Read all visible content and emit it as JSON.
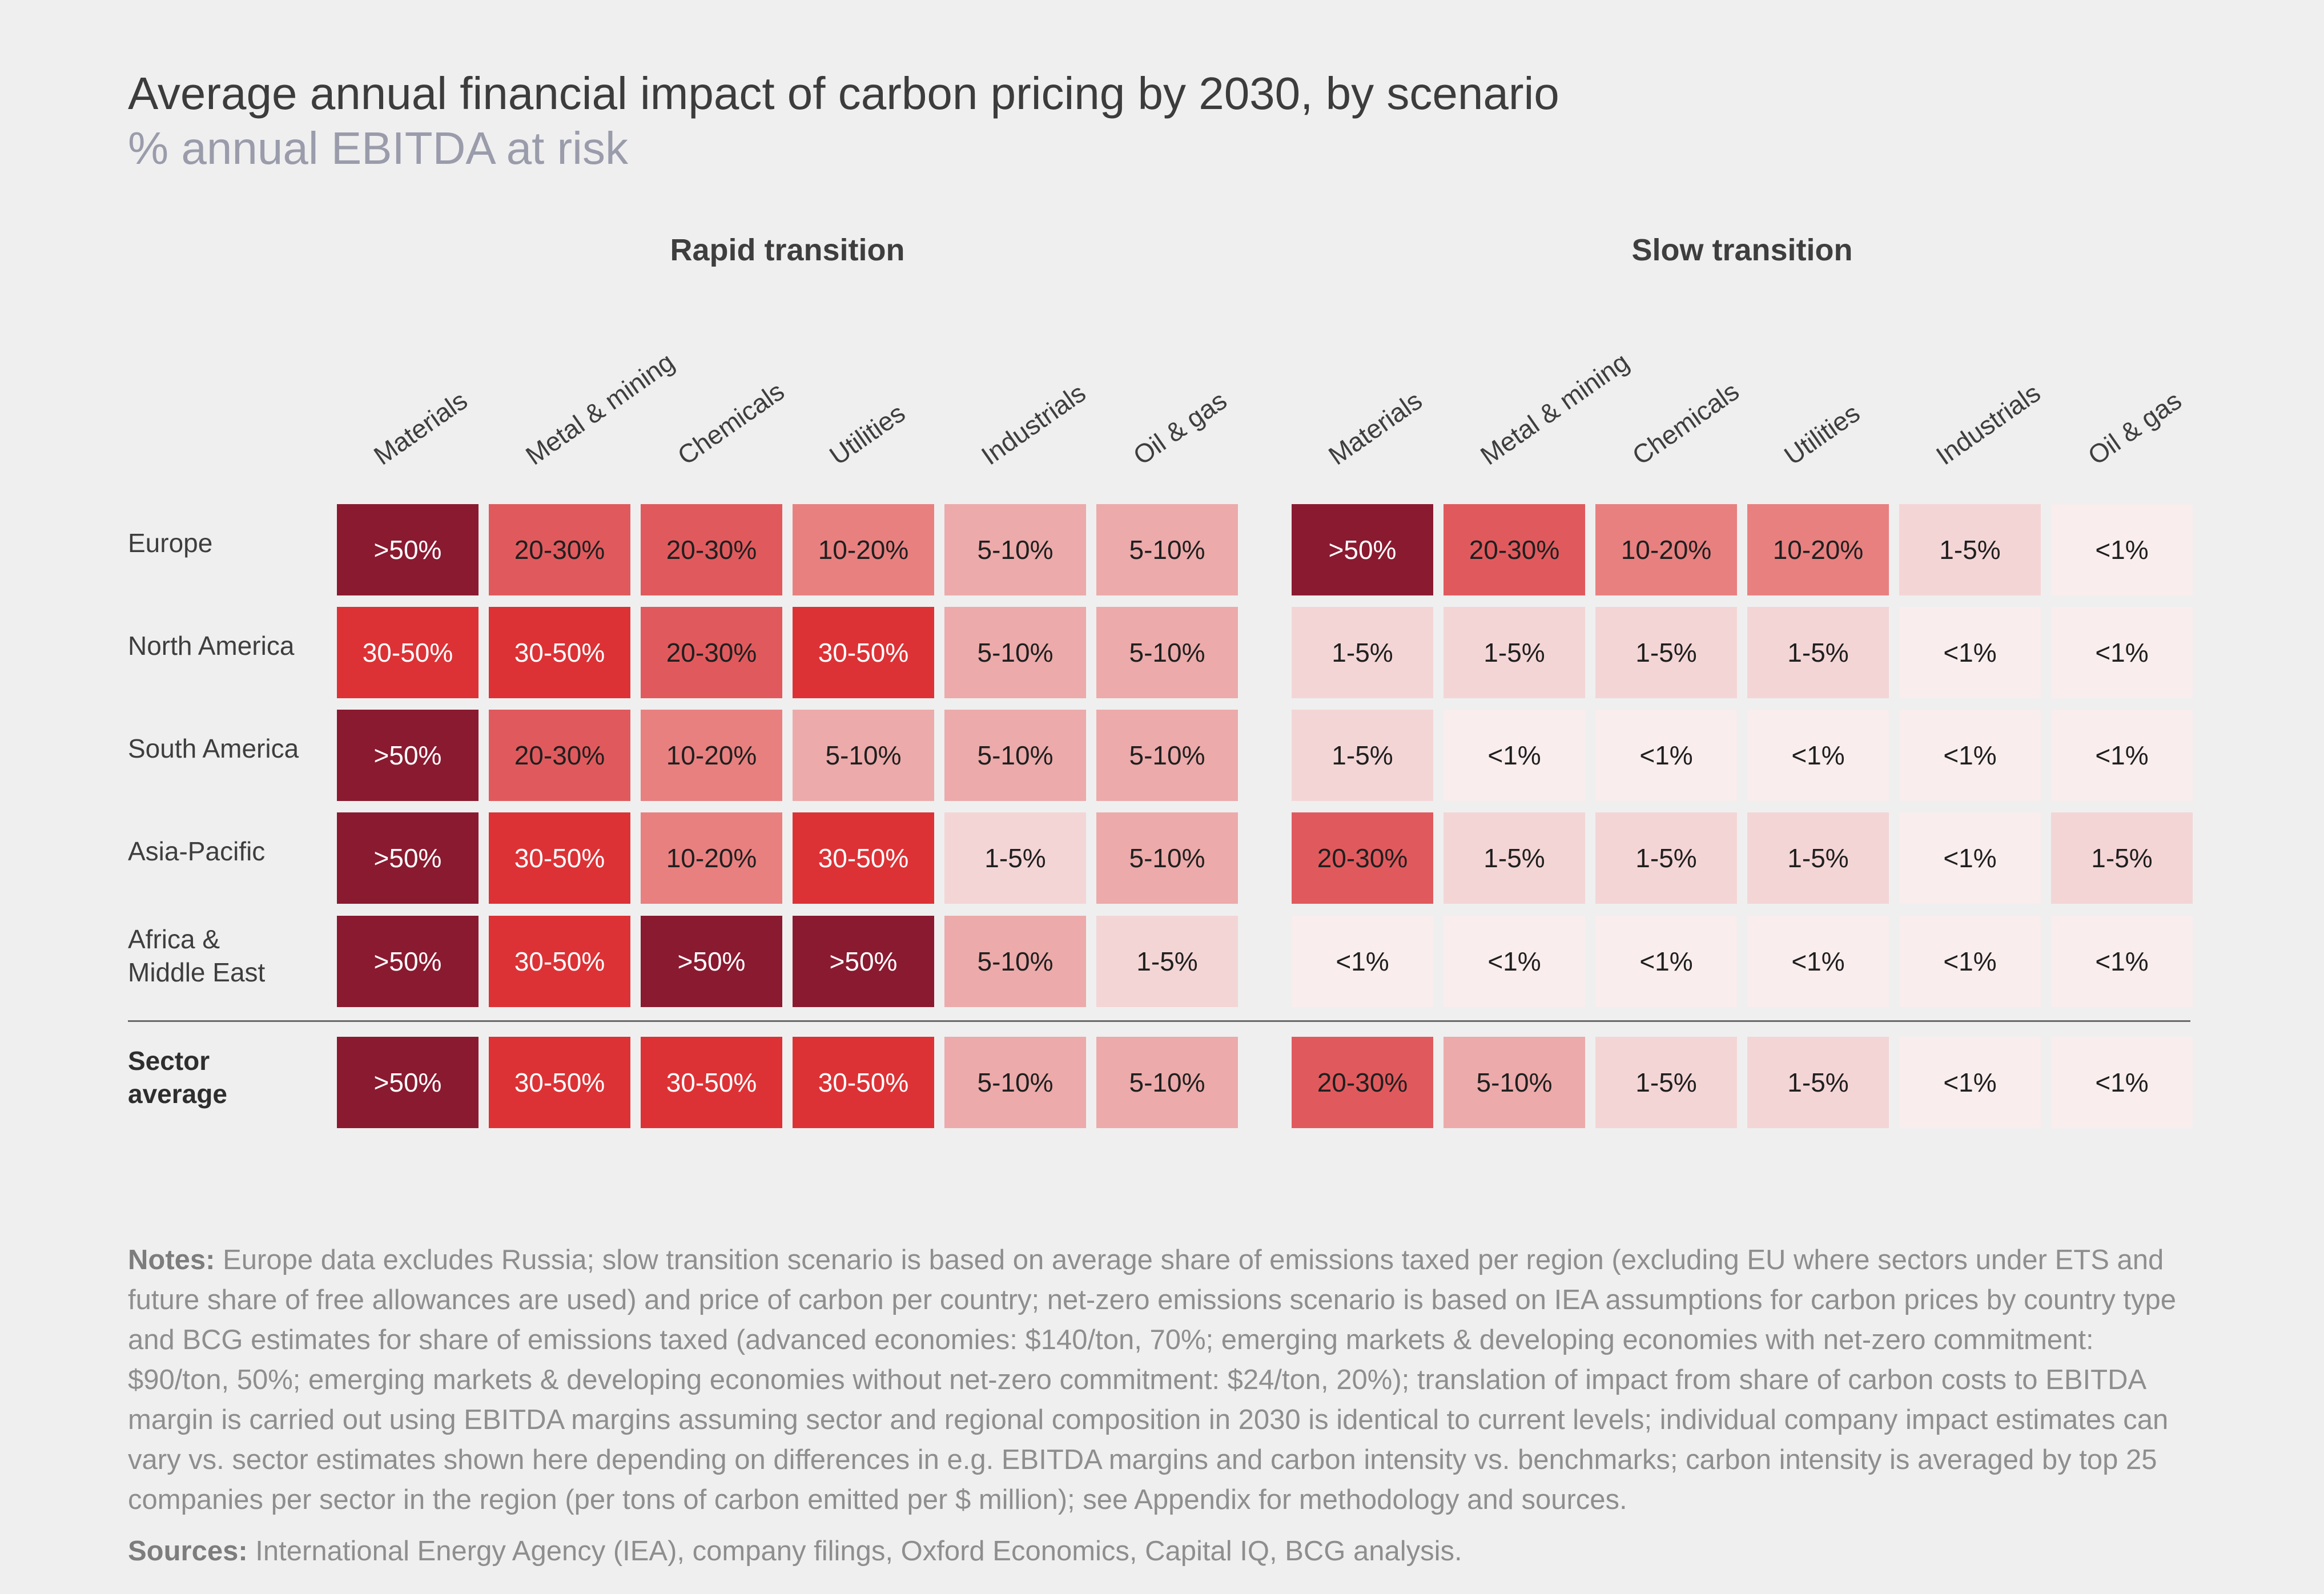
{
  "title": "Average annual financial impact of carbon pricing by 2030, by scenario",
  "subtitle": "% annual EBITDA at risk",
  "chart_data": {
    "type": "heatmap",
    "title": "Average annual financial impact of carbon pricing by 2030, by scenario",
    "subtitle": "% annual EBITDA at risk",
    "columns": [
      "Materials",
      "Metal & mining",
      "Chemicals",
      "Utilities",
      "Industrials",
      "Oil & gas"
    ],
    "rows": [
      "Europe",
      "North America",
      "South America",
      "Asia-Pacific",
      "Africa & Middle East",
      "Sector average"
    ],
    "row_label_lines": [
      [
        "Europe"
      ],
      [
        "North America"
      ],
      [
        "South America"
      ],
      [
        "Asia-Pacific"
      ],
      [
        "Africa &",
        "Middle East"
      ],
      [
        "Sector",
        "average"
      ]
    ],
    "scenarios": [
      {
        "name": "Rapid transition",
        "values": [
          [
            ">50%",
            "20-30%",
            "20-30%",
            "10-20%",
            "5-10%",
            "5-10%"
          ],
          [
            "30-50%",
            "30-50%",
            "20-30%",
            "30-50%",
            "5-10%",
            "5-10%"
          ],
          [
            ">50%",
            "20-30%",
            "10-20%",
            "5-10%",
            "5-10%",
            "5-10%"
          ],
          [
            ">50%",
            "30-50%",
            "10-20%",
            "30-50%",
            "1-5%",
            "5-10%"
          ],
          [
            ">50%",
            "30-50%",
            ">50%",
            ">50%",
            "5-10%",
            "1-5%"
          ],
          [
            ">50%",
            "30-50%",
            "30-50%",
            "30-50%",
            "5-10%",
            "5-10%"
          ]
        ]
      },
      {
        "name": "Slow transition",
        "values": [
          [
            ">50%",
            "20-30%",
            "10-20%",
            "10-20%",
            "1-5%",
            "<1%"
          ],
          [
            "1-5%",
            "1-5%",
            "1-5%",
            "1-5%",
            "<1%",
            "<1%"
          ],
          [
            "1-5%",
            "<1%",
            "<1%",
            "<1%",
            "<1%",
            "<1%"
          ],
          [
            "20-30%",
            "1-5%",
            "1-5%",
            "1-5%",
            "<1%",
            "1-5%"
          ],
          [
            "<1%",
            "<1%",
            "<1%",
            "<1%",
            "<1%",
            "<1%"
          ],
          [
            "20-30%",
            "5-10%",
            "1-5%",
            "1-5%",
            "<1%",
            "<1%"
          ]
        ]
      }
    ],
    "color_scale": {
      ">50%": {
        "fill": "#8a1a30",
        "text": "#ffffff"
      },
      "30-50%": {
        "fill": "#dc3236",
        "text": "#ffffff"
      },
      "20-30%": {
        "fill": "#e05a5d",
        "text": "#1f1f1f"
      },
      "10-20%": {
        "fill": "#e88080",
        "text": "#1f1f1f"
      },
      "5-10%": {
        "fill": "#ecaaaa",
        "text": "#1f1f1f"
      },
      "1-5%": {
        "fill": "#f4d5d6",
        "text": "#1f1f1f"
      },
      "<1%": {
        "fill": "#f9eded",
        "text": "#1f1f1f"
      }
    },
    "summary_row_separated": true
  },
  "notes": {
    "label": "Notes:",
    "text": " Europe data excludes Russia; slow transition scenario is based on average share of emissions taxed per region (excluding EU where sectors under ETS and future share of free allowances are used) and price of carbon per country; net-zero emissions scenario is based on IEA assumptions for carbon prices by country type and BCG estimates for share of emissions taxed (advanced economies: $140/ton, 70%; emerging markets & developing economies with net-zero commitment: $90/ton, 50%; emerging markets & developing economies without net-zero commitment: $24/ton, 20%); translation of impact from share of carbon costs to EBITDA margin is carried out using EBITDA margins assuming sector and regional composition in 2030 is identical to current levels; individual company impact estimates can vary vs. sector estimates shown here depending on differences in e.g. EBITDA margins and carbon intensity vs. benchmarks; carbon intensity is averaged by top 25 companies per sector in the region (per tons of carbon emitted per $ million); see Appendix for methodology and sources."
  },
  "sources": {
    "label": "Sources:",
    "text": " International Energy Agency (IEA), company filings, Oxford Economics, Capital IQ, BCG analysis."
  }
}
